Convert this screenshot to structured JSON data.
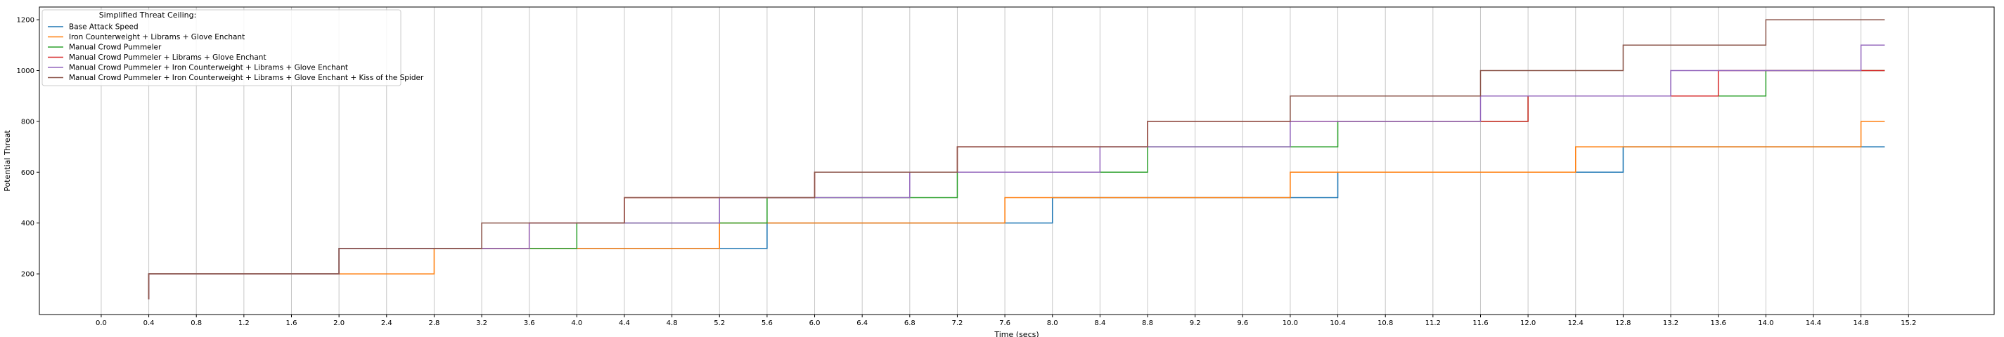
{
  "chart_data": {
    "type": "line",
    "step": true,
    "xlabel": "Time (secs)",
    "ylabel": "Potential Threat",
    "xlim": [
      -0.52,
      15.92
    ],
    "ylim": [
      40,
      1250
    ],
    "xticks": [
      0,
      0.4,
      0.8,
      1.2,
      1.6,
      2.0,
      2.4,
      2.8,
      3.2,
      3.6,
      4.0,
      4.4,
      4.8,
      5.2,
      5.6,
      6.0,
      6.4,
      6.8,
      7.2,
      7.6,
      8.0,
      8.4,
      8.8,
      9.2,
      9.6,
      10.0,
      10.4,
      10.8,
      11.2,
      11.6,
      12.0,
      12.4,
      12.8,
      13.2,
      13.6,
      14.0,
      14.4,
      14.8,
      15.2
    ],
    "xtick_labels": [
      "0.0",
      "0.4",
      "0.8",
      "1.2",
      "1.6",
      "2.0",
      "2.4",
      "2.8",
      "3.2",
      "3.6",
      "4.0",
      "4.4",
      "4.8",
      "5.2",
      "5.6",
      "6.0",
      "6.4",
      "6.8",
      "7.2",
      "7.6",
      "8.0",
      "8.4",
      "8.8",
      "9.2",
      "9.6",
      "10.0",
      "10.4",
      "10.8",
      "11.2",
      "11.6",
      "12.0",
      "12.4",
      "12.8",
      "13.2",
      "13.6",
      "14.0",
      "14.4",
      "14.8",
      "15.2"
    ],
    "yticks": [
      200,
      400,
      600,
      800,
      1000,
      1200
    ],
    "ytick_labels": [
      "200",
      "400",
      "600",
      "800",
      "1000",
      "1200"
    ],
    "grid": "x",
    "legend": {
      "title": "Simplified Threat Ceiling:",
      "placement": "top-left"
    },
    "series": [
      {
        "name": "Base Attack Speed",
        "color": "#1f77b4",
        "x": [
          0.4,
          0.4,
          2.0,
          5.6,
          8.0,
          10.4,
          12.8,
          15.0
        ],
        "y": [
          100,
          200,
          300,
          400,
          500,
          600,
          700,
          700
        ]
      },
      {
        "name": "Iron Counterweight + Librams + Glove Enchant",
        "color": "#ff7f0e",
        "x": [
          0.4,
          0.4,
          2.8,
          5.2,
          7.6,
          10.0,
          12.4,
          14.8,
          15.0
        ],
        "y": [
          100,
          200,
          300,
          400,
          500,
          600,
          700,
          800,
          800
        ]
      },
      {
        "name": "Manual Crowd Pummeler",
        "color": "#2ca02c",
        "x": [
          0.4,
          0.4,
          2.0,
          3.6,
          4.0,
          5.6,
          7.2,
          8.8,
          10.4,
          12.0,
          13.6,
          14.0,
          15.0
        ],
        "y": [
          100,
          200,
          300,
          300,
          400,
          500,
          600,
          700,
          800,
          900,
          900,
          1000,
          1000
        ]
      },
      {
        "name": "Manual Crowd Pummeler + Librams + Glove Enchant",
        "color": "#d62728",
        "x": [
          0.4,
          0.4,
          2.0,
          3.6,
          4.4,
          6.0,
          7.2,
          8.8,
          10.4,
          12.0,
          13.6,
          15.0
        ],
        "y": [
          100,
          200,
          300,
          400,
          500,
          600,
          700,
          800,
          800,
          900,
          1000,
          1000
        ]
      },
      {
        "name": "Manual Crowd Pummeler + Iron Counterweight + Librams + Glove Enchant",
        "color": "#9467bd",
        "x": [
          0.4,
          0.4,
          2.0,
          3.6,
          5.2,
          6.8,
          8.4,
          10.0,
          11.6,
          13.2,
          14.8,
          15.0
        ],
        "y": [
          100,
          200,
          300,
          400,
          500,
          600,
          700,
          800,
          900,
          1000,
          1100,
          1100
        ]
      },
      {
        "name": "Manual Crowd Pummeler + Iron Counterweight + Librams + Glove Enchant + Kiss of the Spider",
        "color": "#8c564b",
        "x": [
          0.4,
          0.4,
          2.0,
          3.2,
          4.4,
          6.0,
          7.2,
          8.8,
          10.0,
          11.6,
          12.8,
          14.0,
          15.0
        ],
        "y": [
          100,
          200,
          300,
          400,
          500,
          600,
          700,
          800,
          900,
          1000,
          1100,
          1200,
          1200
        ]
      }
    ]
  }
}
